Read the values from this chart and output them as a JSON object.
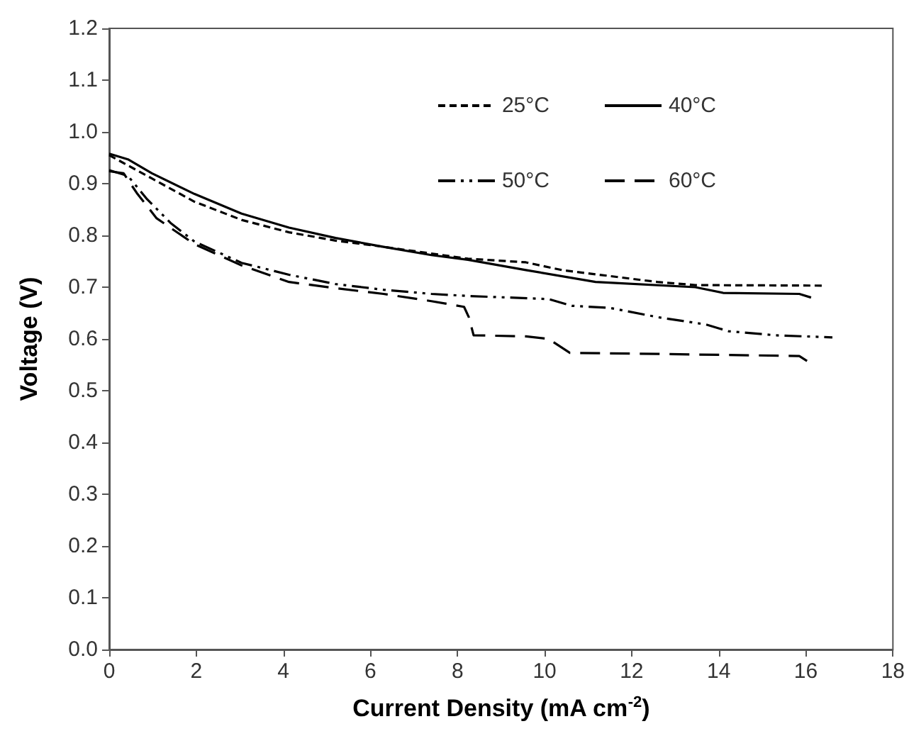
{
  "chart_data": {
    "type": "line",
    "xlabel": "Current Density (mA cm$^{-2}$)",
    "ylabel": "Voltage (V)",
    "xlim": [
      0,
      18
    ],
    "xticks": [
      0,
      2,
      4,
      6,
      8,
      10,
      12,
      14,
      16,
      18
    ],
    "ylim": [
      0,
      1.2
    ],
    "yticks": [
      {
        "value": 0,
        "label": "0.0"
      },
      0.1,
      0.2,
      0.3,
      0.4,
      0.5,
      0.6,
      0.7,
      0.8,
      0.9,
      {
        "value": 1,
        "label": "1.0"
      },
      1.1,
      1.2
    ],
    "grid": false,
    "legend": "top right",
    "marker": "none",
    "series": [
      {
        "name": "25°C",
        "color": "#000000",
        "line_style": "dashed",
        "x": [
          0,
          0.98,
          1.96,
          3.04,
          4.13,
          5.2,
          6.3,
          8.24,
          9.57,
          10.4,
          12.59,
          13.46,
          16.45
        ],
        "values": [
          0.955,
          0.91,
          0.865,
          0.83,
          0.806,
          0.79,
          0.778,
          0.755,
          0.748,
          0.733,
          0.71,
          0.704,
          0.703
        ]
      },
      {
        "name": "40°C",
        "color": "#000000",
        "line_style": "solid",
        "x": [
          0,
          0.43,
          0.98,
          1.96,
          3.04,
          4.13,
          5.2,
          6.3,
          7.4,
          8.24,
          9.57,
          11.17,
          13.46,
          14.1,
          15.85,
          16.12
        ],
        "values": [
          0.958,
          0.947,
          0.92,
          0.88,
          0.842,
          0.815,
          0.795,
          0.778,
          0.762,
          0.753,
          0.733,
          0.71,
          0.7,
          0.689,
          0.687,
          0.68
        ]
      },
      {
        "name": "50°C",
        "color": "#000000",
        "line_style": "dashed",
        "x": [
          0,
          0.43,
          0.87,
          1.41,
          1.96,
          3.04,
          4.13,
          5.2,
          6.3,
          7.4,
          8.24,
          10.09,
          10.63,
          11.5,
          12.6,
          13.7,
          14.22,
          15.3,
          16.61
        ],
        "values": [
          0.926,
          0.915,
          0.87,
          0.824,
          0.788,
          0.747,
          0.724,
          0.706,
          0.695,
          0.687,
          0.683,
          0.677,
          0.664,
          0.66,
          0.642,
          0.628,
          0.615,
          0.607,
          0.603
        ]
      },
      {
        "name": "60°C",
        "color": "#000000",
        "line_style": "dashed",
        "x": [
          0,
          0.33,
          0.65,
          1.09,
          1.96,
          3.04,
          4.13,
          5.2,
          6.3,
          7.4,
          8.15,
          8.26,
          8.37,
          9.57,
          10.09,
          10.58,
          12.59,
          15.85,
          16.07
        ],
        "values": [
          0.924,
          0.92,
          0.88,
          0.833,
          0.783,
          0.742,
          0.71,
          0.698,
          0.687,
          0.673,
          0.662,
          0.642,
          0.607,
          0.605,
          0.6,
          0.573,
          0.571,
          0.567,
          0.555
        ]
      }
    ]
  }
}
